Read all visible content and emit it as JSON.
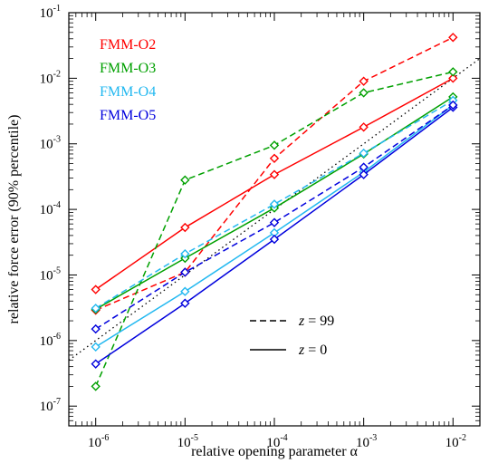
{
  "chart_data": {
    "type": "line",
    "title": "",
    "xlabel": "relative opening parameter α",
    "ylabel": "relative force error (90% percentile)",
    "xscale": "log",
    "yscale": "log",
    "xlim": [
      5e-07,
      0.02
    ],
    "ylim": [
      5e-08,
      0.1
    ],
    "x": [
      1e-06,
      1e-05,
      0.0001,
      0.001,
      0.01
    ],
    "xticks": [
      {
        "value": 1e-06,
        "base": "10",
        "exp": "-6"
      },
      {
        "value": 1e-05,
        "base": "10",
        "exp": "-5"
      },
      {
        "value": 0.0001,
        "base": "10",
        "exp": "-4"
      },
      {
        "value": 0.001,
        "base": "10",
        "exp": "-3"
      },
      {
        "value": 0.01,
        "base": "10",
        "exp": "-2"
      }
    ],
    "yticks": [
      {
        "value": 1e-07,
        "base": "10",
        "exp": "-7"
      },
      {
        "value": 1e-06,
        "base": "10",
        "exp": "-6"
      },
      {
        "value": 1e-05,
        "base": "10",
        "exp": "-5"
      },
      {
        "value": 0.0001,
        "base": "10",
        "exp": "-4"
      },
      {
        "value": 0.001,
        "base": "10",
        "exp": "-3"
      },
      {
        "value": 0.01,
        "base": "10",
        "exp": "-2"
      },
      {
        "value": 0.1,
        "base": "10",
        "exp": "-1"
      }
    ],
    "legend": {
      "placement": "top-left",
      "entries": [
        {
          "name": "FMM-O2",
          "color": "#ff0000"
        },
        {
          "name": "FMM-O3",
          "color": "#00a000"
        },
        {
          "name": "FMM-O4",
          "color": "#22b8f0"
        },
        {
          "name": "FMM-O5",
          "color": "#0000dd"
        }
      ]
    },
    "style_legend": {
      "placement": "bottom-right",
      "entries": [
        {
          "style": "dashed",
          "var": "z",
          "value": " = 99"
        },
        {
          "style": "solid",
          "var": "z",
          "value": " = 0"
        }
      ]
    },
    "reference_line": {
      "style": "dotted",
      "color": "#000000",
      "x": [
        5e-07,
        0.02
      ],
      "y": [
        5e-07,
        0.02
      ]
    },
    "series": [
      {
        "name": "FMM-O2",
        "color": "#ff0000",
        "style": "solid",
        "values": [
          6e-06,
          5.3e-05,
          0.00034,
          0.0018,
          0.01
        ]
      },
      {
        "name": "FMM-O2",
        "color": "#ff0000",
        "style": "dashed",
        "values": [
          2.9e-06,
          1.1e-05,
          0.0006,
          0.009,
          0.042
        ]
      },
      {
        "name": "FMM-O3",
        "color": "#00a000",
        "style": "solid",
        "values": [
          3e-06,
          1.8e-05,
          0.000105,
          0.0007,
          0.0052
        ]
      },
      {
        "name": "FMM-O3",
        "color": "#00a000",
        "style": "dashed",
        "values": [
          2e-07,
          0.00028,
          0.00095,
          0.006,
          0.0125
        ]
      },
      {
        "name": "FMM-O4",
        "color": "#22b8f0",
        "style": "solid",
        "values": [
          8e-07,
          5.6e-06,
          4.4e-05,
          0.00037,
          0.0039
        ]
      },
      {
        "name": "FMM-O4",
        "color": "#22b8f0",
        "style": "dashed",
        "values": [
          3.1e-06,
          2.1e-05,
          0.00012,
          0.00072,
          0.0046
        ]
      },
      {
        "name": "FMM-O5",
        "color": "#0000dd",
        "style": "solid",
        "values": [
          4.4e-07,
          3.7e-06,
          3.5e-05,
          0.00034,
          0.0036
        ]
      },
      {
        "name": "FMM-O5",
        "color": "#0000dd",
        "style": "dashed",
        "values": [
          1.5e-06,
          1.1e-05,
          6.3e-05,
          0.00044,
          0.0039
        ]
      }
    ]
  }
}
